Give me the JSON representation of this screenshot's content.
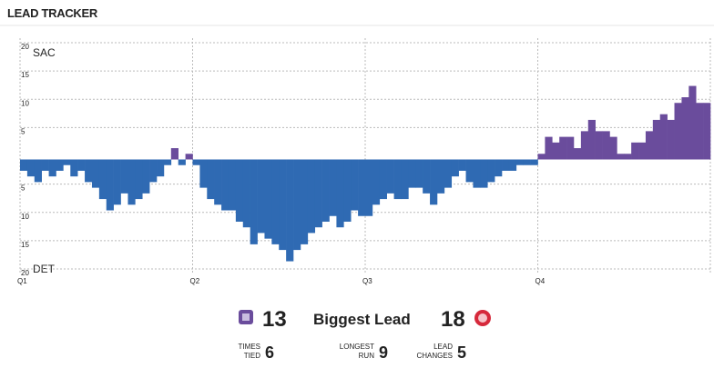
{
  "chart_data": {
    "type": "bar",
    "title": "LEAD TRACKER",
    "categories": [
      "Q1",
      null,
      null,
      null,
      null,
      null,
      null,
      null,
      null,
      null,
      null,
      null,
      null,
      null,
      null,
      null,
      null,
      null,
      null,
      null,
      null,
      null,
      null,
      null,
      "Q2",
      null,
      null,
      null,
      null,
      null,
      null,
      null,
      null,
      null,
      null,
      null,
      null,
      null,
      null,
      null,
      null,
      null,
      null,
      null,
      null,
      null,
      null,
      null,
      "Q3",
      null,
      null,
      null,
      null,
      null,
      null,
      null,
      null,
      null,
      null,
      null,
      null,
      null,
      null,
      null,
      null,
      null,
      null,
      null,
      null,
      null,
      null,
      null,
      "Q4",
      null,
      null,
      null,
      null,
      null,
      null,
      null,
      null,
      null,
      null,
      null,
      null,
      null,
      null,
      null,
      null,
      null,
      null,
      null,
      null,
      null,
      null,
      null
    ],
    "values": [
      -2,
      -3,
      -4,
      -2,
      -3,
      -2,
      -1,
      -3,
      -2,
      -4,
      -5,
      -7,
      -9,
      -8,
      -6,
      -8,
      -7,
      -6,
      -4,
      -3,
      -1,
      2,
      -1,
      1,
      -1,
      -5,
      -7,
      -8,
      -9,
      -9,
      -11,
      -12,
      -15,
      -13,
      -14,
      -15,
      -16,
      -18,
      -16,
      -15,
      -13,
      -12,
      -11,
      -10,
      -12,
      -11,
      -9,
      -10,
      -10,
      -8,
      -7,
      -6,
      -7,
      -7,
      -5,
      -5,
      -6,
      -8,
      -6,
      -5,
      -3,
      -2,
      -4,
      -5,
      -5,
      -4,
      -3,
      -2,
      -2,
      -1,
      -1,
      -1,
      1,
      4,
      3,
      4,
      4,
      2,
      5,
      7,
      5,
      5,
      4,
      1,
      1,
      3,
      3,
      5,
      7,
      8,
      7,
      10,
      11,
      13,
      10,
      10
    ],
    "color_positive": "#6a4c9c",
    "color_negative": "#2f6ab3",
    "ylim": [
      -20,
      20
    ],
    "yticks": [
      20,
      15,
      10,
      5,
      {
        "value": -5,
        "label": "5"
      },
      {
        "value": -10,
        "label": "10"
      },
      {
        "value": -15,
        "label": "15"
      },
      {
        "value": -20,
        "label": "20"
      }
    ],
    "grid": true,
    "annotations": [
      "SAC",
      "DET"
    ]
  },
  "summary": {
    "label": "Biggest Lead",
    "sac": 13,
    "det": 18,
    "stats": [
      {
        "label": [
          "TIMES",
          "TIED"
        ],
        "value": 6
      },
      {
        "label": [
          "LONGEST",
          "RUN"
        ],
        "value": 9
      },
      {
        "label": [
          "LEAD",
          "CHANGES"
        ],
        "value": 5
      }
    ]
  }
}
